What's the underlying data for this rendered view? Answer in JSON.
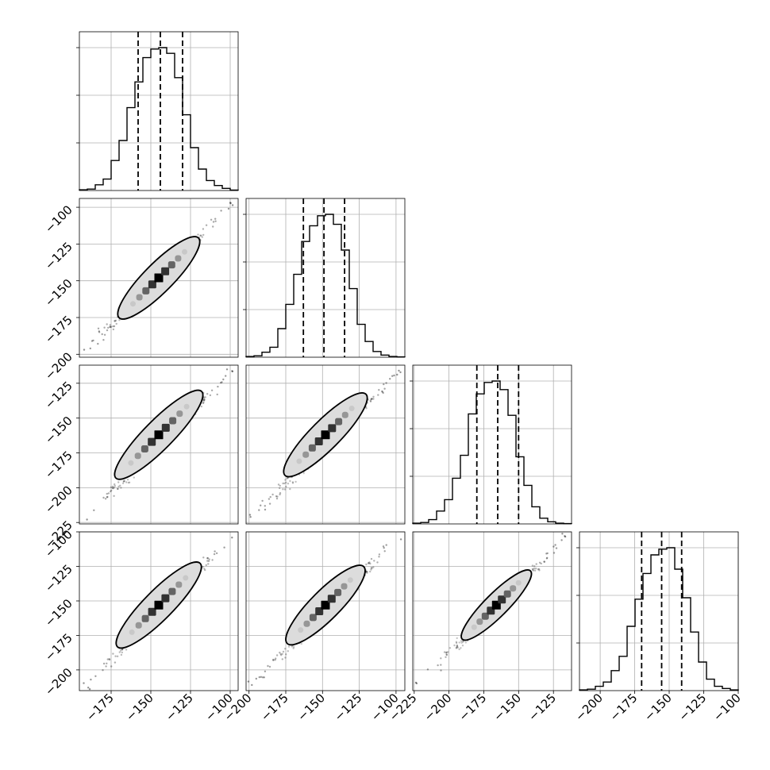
{
  "chart_data": {
    "type": "corner",
    "n_parameters": 4,
    "grid": true,
    "parameters": [
      {
        "index": 0,
        "range": [
          -195,
          -95
        ],
        "axis_ticks": [
          -175,
          -150,
          -125,
          -100
        ],
        "tick_labels": [
          "−175",
          "−150",
          "−125",
          "−100"
        ],
        "quantiles": [
          -158,
          -144,
          -130
        ],
        "histogram": {
          "bin_edges": [
            -195,
            -190,
            -185,
            -180,
            -175,
            -170,
            -165,
            -160,
            -155,
            -150,
            -145,
            -140,
            -135,
            -130,
            -125,
            -120,
            -115,
            -110,
            -105,
            -100,
            -95
          ],
          "counts": [
            0.005,
            0.01,
            0.04,
            0.08,
            0.21,
            0.35,
            0.58,
            0.76,
            0.93,
            0.99,
            1.0,
            0.96,
            0.79,
            0.53,
            0.3,
            0.15,
            0.07,
            0.035,
            0.015,
            0.003
          ]
        }
      },
      {
        "index": 1,
        "range": [
          -202,
          -94
        ],
        "axis_ticks": [
          -200,
          -175,
          -150,
          -125,
          -100
        ],
        "tick_labels": [
          "−200",
          "−175",
          "−150",
          "−125",
          "−100"
        ],
        "quantiles": [
          -163,
          -149,
          -135
        ],
        "histogram": {
          "bin_edges": [
            -202,
            -196.6,
            -191.2,
            -185.8,
            -180.4,
            -175,
            -169.6,
            -164.2,
            -158.8,
            -153.4,
            -148,
            -142.6,
            -137.2,
            -131.8,
            -126.4,
            -121,
            -115.6,
            -110.2,
            -104.8,
            -99.4,
            -94
          ],
          "counts": [
            0.005,
            0.01,
            0.035,
            0.07,
            0.2,
            0.37,
            0.58,
            0.81,
            0.92,
            0.99,
            1.0,
            0.93,
            0.75,
            0.48,
            0.23,
            0.11,
            0.04,
            0.015,
            0.005,
            0.002
          ]
        }
      },
      {
        "index": 2,
        "range": [
          -226,
          -112
        ],
        "axis_ticks": [
          -225,
          -200,
          -175,
          -150,
          -125
        ],
        "tick_labels": [
          "−225",
          "−200",
          "−175",
          "−150",
          "−125"
        ],
        "quantiles": [
          -180,
          -165,
          -150
        ],
        "histogram": {
          "bin_edges": [
            -226,
            -220.3,
            -214.6,
            -208.9,
            -203.2,
            -197.5,
            -191.8,
            -186.1,
            -180.4,
            -174.7,
            -169,
            -163.3,
            -157.6,
            -151.9,
            -146.2,
            -140.5,
            -134.8,
            -129.1,
            -123.4,
            -117.7,
            -112
          ],
          "counts": [
            0.005,
            0.01,
            0.03,
            0.09,
            0.17,
            0.32,
            0.48,
            0.77,
            0.91,
            0.99,
            1.0,
            0.94,
            0.76,
            0.47,
            0.27,
            0.12,
            0.04,
            0.015,
            0.005,
            0.002
          ]
        }
      },
      {
        "index": 3,
        "range": [
          -215,
          -100
        ],
        "axis_ticks": [
          -200,
          -175,
          -150,
          -125,
          -100
        ],
        "tick_labels": [
          "−200",
          "−175",
          "−150",
          "−125",
          "−100"
        ],
        "quantiles": [
          -170,
          -155.5,
          -141
        ],
        "histogram": {
          "bin_edges": [
            -215,
            -209.25,
            -203.5,
            -197.75,
            -192,
            -186.25,
            -180.5,
            -174.75,
            -169,
            -163.25,
            -157.5,
            -151.75,
            -146,
            -140.25,
            -134.5,
            -128.75,
            -123,
            -117.25,
            -111.5,
            -105.75,
            -100
          ],
          "counts": [
            0.005,
            0.01,
            0.03,
            0.06,
            0.14,
            0.24,
            0.45,
            0.64,
            0.82,
            0.95,
            0.99,
            1.0,
            0.85,
            0.65,
            0.41,
            0.2,
            0.08,
            0.03,
            0.015,
            0.005
          ]
        }
      }
    ],
    "pair_panels": [
      {
        "x": 0,
        "y": 1,
        "center": [
          -145,
          -148
        ],
        "extent": [
          -172,
          -122
        ],
        "width": 0.07
      },
      {
        "x": 0,
        "y": 2,
        "center": [
          -145,
          -162
        ],
        "extent": [
          -172,
          -118
        ],
        "width": 0.07
      },
      {
        "x": 1,
        "y": 2,
        "center": [
          -148,
          -162
        ],
        "extent": [
          -176,
          -121
        ],
        "width": 0.07
      },
      {
        "x": 0,
        "y": 3,
        "center": [
          -145,
          -153
        ],
        "extent": [
          -172,
          -120
        ],
        "width": 0.07
      },
      {
        "x": 1,
        "y": 3,
        "center": [
          -148,
          -153
        ],
        "extent": [
          -176,
          -124
        ],
        "width": 0.07
      },
      {
        "x": 2,
        "y": 3,
        "center": [
          -166,
          -153
        ],
        "extent": [
          -186,
          -137
        ],
        "width": 0.055
      }
    ]
  }
}
